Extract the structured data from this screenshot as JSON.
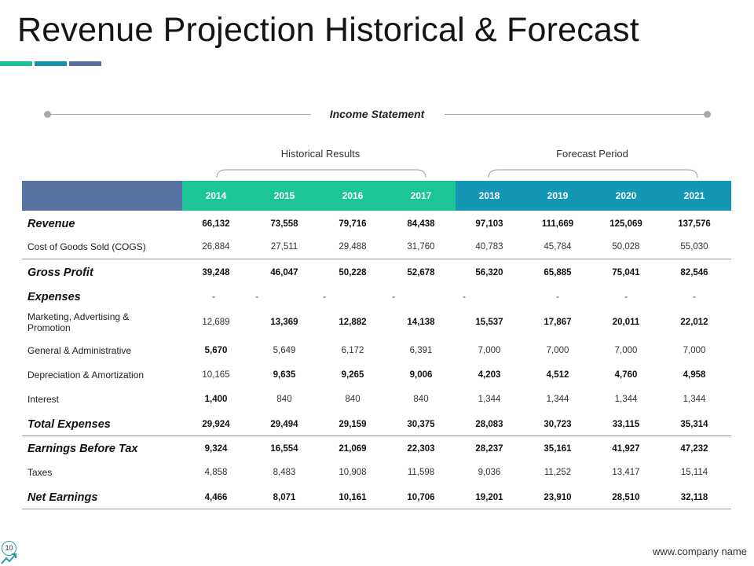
{
  "title": "Revenue Projection Historical & Forecast",
  "section_label": "Income Statement",
  "groups": {
    "historical": "Historical Results",
    "forecast": "Forecast Period"
  },
  "years": [
    "2014",
    "2015",
    "2016",
    "2017",
    "2018",
    "2019",
    "2020",
    "2021"
  ],
  "rows": [
    {
      "label": "Revenue",
      "values": [
        "66,132",
        "73,558",
        "79,716",
        "84,438",
        "97,103",
        "111,669",
        "125,069",
        "137,576"
      ]
    },
    {
      "label": "Cost of Goods Sold (COGS)",
      "values": [
        "26,884",
        "27,511",
        "29,488",
        "31,760",
        "40,783",
        "45,784",
        "50,028",
        "55,030"
      ]
    },
    {
      "label": "Gross Profit",
      "values": [
        "39,248",
        "46,047",
        "50,228",
        "52,678",
        "56,320",
        "65,885",
        "75,041",
        "82,546"
      ]
    },
    {
      "label": "Expenses",
      "values": [
        "-",
        "-",
        "-",
        "-",
        "-",
        "-",
        "-",
        "-"
      ]
    },
    {
      "label": "Marketing, Advertising & Promotion",
      "values": [
        "12,689",
        "13,369",
        "12,882",
        "14,138",
        "15,537",
        "17,867",
        "20,011",
        "22,012"
      ]
    },
    {
      "label": "General & Administrative",
      "values": [
        "5,670",
        "5,649",
        "6,172",
        "6,391",
        "7,000",
        "7,000",
        "7,000",
        "7,000"
      ]
    },
    {
      "label": "Depreciation & Amortization",
      "values": [
        "10,165",
        "9,635",
        "9,265",
        "9,006",
        "4,203",
        "4,512",
        "4,760",
        "4,958"
      ]
    },
    {
      "label": "Interest",
      "values": [
        "1,400",
        "840",
        "840",
        "840",
        "1,344",
        "1,344",
        "1,344",
        "1,344"
      ]
    },
    {
      "label": "Total Expenses",
      "values": [
        "29,924",
        "29,494",
        "29,159",
        "30,375",
        "28,083",
        "30,723",
        "33,115",
        "35,314"
      ]
    },
    {
      "label": "Earnings Before Tax",
      "values": [
        "9,324",
        "16,554",
        "21,069",
        "22,303",
        "28,237",
        "35,161",
        "41,927",
        "47,232"
      ]
    },
    {
      "label": "Taxes",
      "values": [
        "4,858",
        "8,483",
        "10,908",
        "11,598",
        "9,036",
        "11,252",
        "13,417",
        "15,114"
      ]
    },
    {
      "label": "Net Earnings",
      "values": [
        "4,466",
        "8,071",
        "10,161",
        "10,706",
        "19,201",
        "23,910",
        "28,510",
        "32,118"
      ]
    }
  ],
  "footer": {
    "url": "www.company name",
    "page": "10"
  },
  "colors": {
    "label_header": "#5672a0",
    "historical": "#1cc496",
    "forecast": "#1397b4",
    "accent_1": "#1cbf97",
    "accent_2": "#1c8fa8",
    "accent_3": "#5570a0"
  }
}
